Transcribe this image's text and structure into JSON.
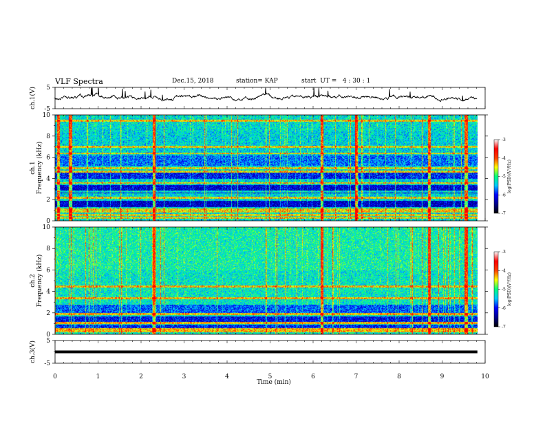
{
  "header": {
    "title": "VLF Spectra",
    "date": "Dec.15, 2018",
    "station": "station= KAP",
    "start": "start  UT =   4 : 30 : 1"
  },
  "chart_data": [
    {
      "type": "line",
      "name": "ch1-waveform",
      "ylabel": "ch.1(V)",
      "ylim": [
        -5,
        5
      ],
      "yticks": [
        "5",
        "-5"
      ],
      "x_range_min": [
        0,
        9.82
      ],
      "description_level": "noisy trace around 0 V with positive excursions"
    },
    {
      "type": "heatmap",
      "name": "ch1-spectrogram",
      "ylabel_top": "ch.1",
      "ylabel": "Frequency (kHz)",
      "ylim": [
        0,
        10
      ],
      "yticks": [
        "0",
        "2",
        "4",
        "6",
        "8",
        "10"
      ],
      "xlim": [
        0,
        9.82
      ],
      "bands_khz": [
        0.3,
        0.6,
        0.9,
        1.1,
        2.2,
        2.8,
        3.6,
        4.7,
        5.0,
        6.4,
        7.0,
        9.5
      ],
      "vertical_bursts_min": [
        0.07,
        0.35,
        2.3,
        6.2,
        7.0,
        8.7,
        9.55
      ],
      "colorbar": {
        "ylabel": "log(PSD)(V²/Hz)",
        "ticks": [
          "-3",
          "-4",
          "-5",
          "-6",
          "-7"
        ],
        "range": [
          -7,
          -3
        ]
      }
    },
    {
      "type": "heatmap",
      "name": "ch2-spectrogram",
      "ylabel_top": "ch.2",
      "ylabel": "Frequency (kHz)",
      "ylim": [
        0,
        10
      ],
      "yticks": [
        "0",
        "2",
        "4",
        "6",
        "8",
        "10"
      ],
      "xlim": [
        0,
        9.82
      ],
      "bands_khz": [
        0.3,
        0.5,
        1.1,
        1.9,
        3.4,
        4.5
      ],
      "vertical_bursts_min": [
        2.3,
        6.2,
        8.7,
        9.55
      ],
      "colorbar": {
        "ylabel": "log(PSD)(V²/Hz)",
        "ticks": [
          "-3",
          "-4",
          "-5",
          "-6",
          "-7"
        ],
        "range": [
          -7,
          -3
        ]
      }
    },
    {
      "type": "line",
      "name": "ch3-waveform",
      "ylabel": "ch.3(V)",
      "ylim": [
        -5,
        5
      ],
      "yticks": [
        "5",
        "-5"
      ],
      "x_range_min": [
        0,
        9.82
      ],
      "level_v": 0.0
    }
  ],
  "xaxis": {
    "label": "Time (min)",
    "ticks": [
      "0",
      "1",
      "2",
      "3",
      "4",
      "5",
      "6",
      "7",
      "8",
      "9",
      "10"
    ],
    "xlim": [
      0,
      10
    ]
  },
  "colors": {
    "colormap": [
      "#00008b",
      "#0000ff",
      "#00c8ff",
      "#00ff80",
      "#ffff00",
      "#ff4000",
      "#ff0000",
      "#ffffff"
    ]
  }
}
